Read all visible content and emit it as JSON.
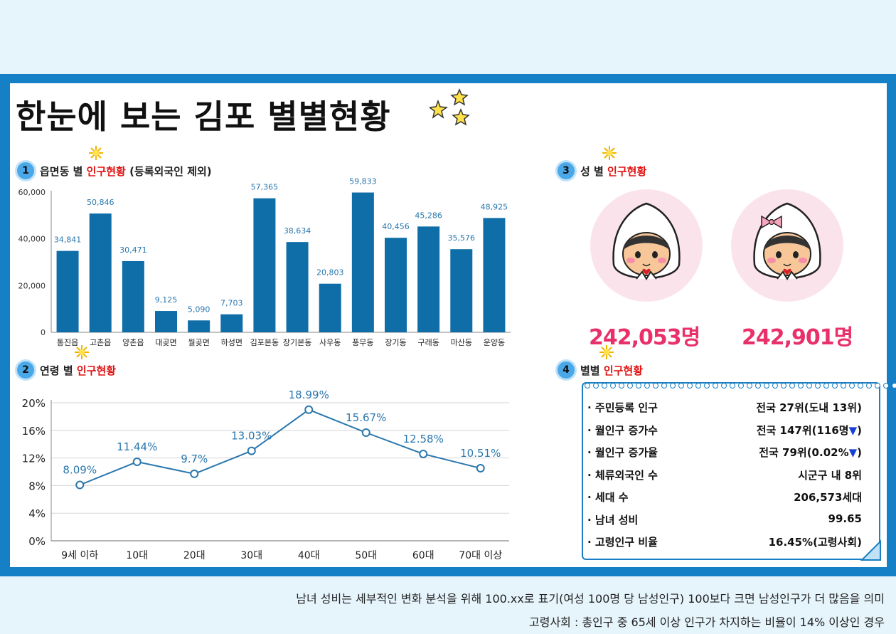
{
  "title": "한눈에 보는 김포 별별현황",
  "sections": {
    "s1": {
      "num": "1",
      "prefix": "읍면동 별 ",
      "red": "인구현황",
      "suffix": " (등록외국인 제외)"
    },
    "s2": {
      "num": "2",
      "prefix": "연령 별 ",
      "red": "인구현황",
      "suffix": ""
    },
    "s3": {
      "num": "3",
      "prefix": "성 별 ",
      "red": "인구현황",
      "suffix": ""
    },
    "s4": {
      "num": "4",
      "prefix": "별별 ",
      "red": "인구현황",
      "suffix": ""
    }
  },
  "chart_data": [
    {
      "type": "bar",
      "categories": [
        "통진읍",
        "고촌읍",
        "양촌읍",
        "대곶면",
        "월곶면",
        "하성면",
        "김포본동",
        "장기본동",
        "사우동",
        "풍무동",
        "장기동",
        "구래동",
        "마산동",
        "운양동"
      ],
      "values": [
        34841,
        50846,
        30471,
        9125,
        5090,
        7703,
        57365,
        38634,
        20803,
        59833,
        40456,
        45286,
        35576,
        48925
      ],
      "value_labels": [
        "34,841",
        "50,846",
        "30,471",
        "9,125",
        "5,090",
        "7,703",
        "57,365",
        "38,634",
        "20,803",
        "59,833",
        "40,456",
        "45,286",
        "35,576",
        "48,925"
      ],
      "yticks": [
        "0",
        "20,000",
        "40,000",
        "60,000"
      ],
      "ylim": [
        0,
        60000
      ],
      "color": "#0f6ea8",
      "grid": false
    },
    {
      "type": "line",
      "categories": [
        "9세 이하",
        "10대",
        "20대",
        "30대",
        "40대",
        "50대",
        "60대",
        "70대 이상"
      ],
      "values": [
        8.09,
        11.44,
        9.7,
        13.03,
        18.99,
        15.67,
        12.58,
        10.51
      ],
      "value_labels": [
        "8.09%",
        "11.44%",
        "9.7%",
        "13.03%",
        "18.99%",
        "15.67%",
        "12.58%",
        "10.51%"
      ],
      "yticks": [
        "0%",
        "4%",
        "8%",
        "12%",
        "16%",
        "20%"
      ],
      "ylim": [
        0,
        20
      ],
      "color": "#2a77ad",
      "grid": true
    }
  ],
  "gender": {
    "male_count": "242,053명",
    "female_count": "242,901명",
    "skin": "#f7c79a",
    "cheek": "#f58fa8"
  },
  "stats": [
    {
      "label": "· 주민등록 인구",
      "value": "전국 27위(도내 13위)",
      "arrow": false
    },
    {
      "label": "· 월인구 증가수",
      "value": "전국 147위(116명",
      "arrow": true
    },
    {
      "label": "· 월인구 증가율",
      "value": "전국 79위(0.02%",
      "arrow": true
    },
    {
      "label": "· 체류외국인 수",
      "value": "시군구 내 8위",
      "arrow": false
    },
    {
      "label": "· 세대 수",
      "value": "206,573세대",
      "arrow": false
    },
    {
      "label": "· 남녀 성비",
      "value": "99.65",
      "arrow": false
    },
    {
      "label": "· 고령인구 비율",
      "value": "16.45%(고령사회)",
      "arrow": false
    }
  ],
  "arrow_glyph": "▼",
  "arrow_close": ")",
  "notes": [
    "남녀 성비는 세부적인 변화 분석을 위해 100.xx로 표기(여성 100명 당 남성인구) 100보다 크면 남성인구가 더 많음을 의미",
    "고령사회 : 총인구 중 65세 이상 인구가 차지하는 비율이 14% 이상인 경우"
  ]
}
